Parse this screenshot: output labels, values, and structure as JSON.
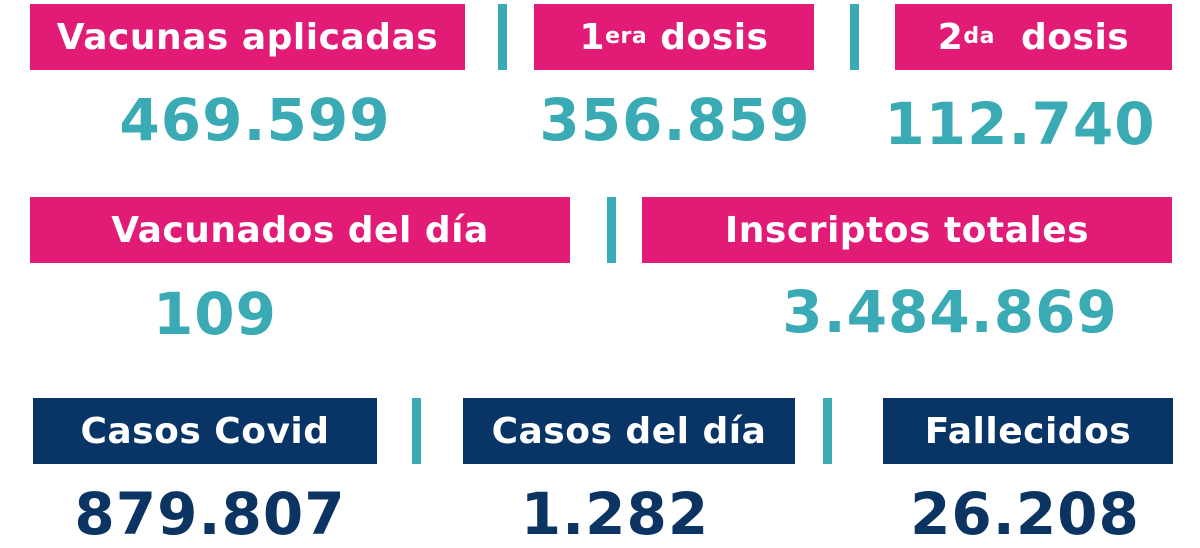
{
  "vaccination": {
    "total": {
      "label": "Vacunas aplicadas",
      "value": "469.599"
    },
    "first_dose": {
      "number": "1",
      "ordinal": "era",
      "word": "dosis",
      "value": "356.859"
    },
    "second_dose": {
      "number": "2",
      "ordinal": "da",
      "word": "dosis",
      "value": "112.740"
    }
  },
  "registrations": {
    "vaccinated_today": {
      "label": "Vacunados del día",
      "value": "109"
    },
    "total_registered": {
      "label": "Inscriptos totales",
      "value": "3.484.869"
    }
  },
  "covid": {
    "cases": {
      "label": "Casos Covid",
      "value": "879.807"
    },
    "cases_today": {
      "label": "Casos del día",
      "value": "1.282"
    },
    "deaths": {
      "label": "Fallecidos",
      "value": "26.208"
    }
  },
  "colors": {
    "pink": "#e11b76",
    "navy": "#083566",
    "teal": "#3aaab4",
    "dark_text": "#0b3462"
  }
}
